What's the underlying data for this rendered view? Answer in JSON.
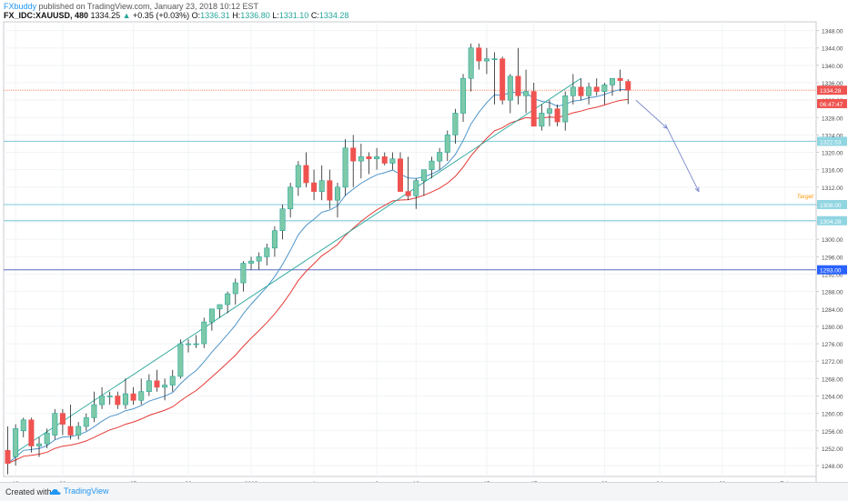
{
  "header": {
    "user": "FXbuddy",
    "published_text": "published on TradingView.com, January 23, 2018 10:12 EST",
    "symbol_tf": "FX_IDC:XAUUSD, 480",
    "last": "1334.25",
    "change_arrow": "▲",
    "change": "+0.35 (+0.03%)",
    "o_label": "O:",
    "o": "1336.31",
    "h_label": "H:",
    "h": "1336.80",
    "l_label": "L:",
    "l": "1331.10",
    "c_label": "C:",
    "c": "1334.28"
  },
  "footer": {
    "created_with": "Created with",
    "brand": "TradingView"
  },
  "chart_data": {
    "type": "candlestick",
    "symbol": "XAUUSD",
    "timeframe": "480",
    "x_ticks": [
      {
        "label": "18",
        "i": 1
      },
      {
        "label": "20",
        "i": 7
      },
      {
        "label": "25",
        "i": 16
      },
      {
        "label": "28",
        "i": 23
      },
      {
        "label": "2018",
        "i": 31
      },
      {
        "label": "4",
        "i": 39
      },
      {
        "label": "8",
        "i": 47
      },
      {
        "label": "10",
        "i": 52
      },
      {
        "label": "15",
        "i": 61
      },
      {
        "label": "17",
        "i": 67
      },
      {
        "label": "22",
        "i": 76
      },
      {
        "label": "24",
        "i": 83
      },
      {
        "label": "29",
        "i": 91
      },
      {
        "label": "Feb",
        "i": 99
      }
    ],
    "y_ticks": [
      1248,
      1252,
      1256,
      1260,
      1264,
      1268,
      1272,
      1276,
      1280,
      1284,
      1288,
      1292,
      1296,
      1300,
      1304,
      1308,
      1312,
      1316,
      1320,
      1324,
      1328,
      1332,
      1336,
      1340,
      1344,
      1348
    ],
    "ylim": [
      1245.5,
      1350
    ],
    "price_labels": [
      {
        "label": "1334.28",
        "price": 1334.28,
        "color": "#ef5350",
        "dashed": true,
        "line_color": "#ff8a65"
      },
      {
        "label": "06:47:47",
        "price": 1331.2,
        "color": "#ef5350",
        "line": false
      },
      {
        "label": "1322.53",
        "price": 1322.53,
        "color": "#90d5e2",
        "line_color": "#7ec8d8"
      },
      {
        "label": "1308.00",
        "price": 1308.0,
        "color": "#90d5e2",
        "line_color": "#7ec8d8"
      },
      {
        "label": "1304.28",
        "price": 1304.28,
        "color": "#90d5e2",
        "line_color": "#7ec8d8"
      },
      {
        "label": "1293.00",
        "price": 1293.0,
        "color": "#2962ff",
        "line_color": "#5c6bc0"
      }
    ],
    "target_label": {
      "text": "Target",
      "price": 1309.5,
      "color": "#ff9800"
    },
    "candles": [
      [
        1251.5,
        1257,
        1246,
        1248.5
      ],
      [
        1250,
        1257.5,
        1248,
        1256.5
      ],
      [
        1256,
        1259,
        1254.5,
        1258.5
      ],
      [
        1258.5,
        1259,
        1251,
        1252.5
      ],
      [
        1252.5,
        1254.5,
        1250,
        1253
      ],
      [
        1253,
        1256.5,
        1252,
        1255.5
      ],
      [
        1255,
        1261,
        1254,
        1260
      ],
      [
        1260,
        1261,
        1255,
        1257.5
      ],
      [
        1257,
        1262,
        1254,
        1255
      ],
      [
        1255,
        1258,
        1254,
        1257
      ],
      [
        1257,
        1260,
        1256,
        1259
      ],
      [
        1259,
        1265,
        1258,
        1262
      ],
      [
        1262,
        1266,
        1261,
        1264
      ],
      [
        1264,
        1265,
        1262,
        1264
      ],
      [
        1264,
        1265,
        1261,
        1262
      ],
      [
        1262,
        1268,
        1261,
        1264.5
      ],
      [
        1264.5,
        1266,
        1262,
        1263
      ],
      [
        1263,
        1268,
        1262,
        1265
      ],
      [
        1265,
        1269,
        1264,
        1267.5
      ],
      [
        1267.5,
        1270,
        1265,
        1266
      ],
      [
        1266,
        1268,
        1263,
        1266.5
      ],
      [
        1266.5,
        1270,
        1265,
        1268.5
      ],
      [
        1268.5,
        1277,
        1268,
        1276
      ],
      [
        1276,
        1277,
        1274,
        1276
      ],
      [
        1276,
        1278,
        1275,
        1276
      ],
      [
        1276,
        1282,
        1275,
        1281
      ],
      [
        1281,
        1284,
        1279,
        1284
      ],
      [
        1284,
        1285,
        1282,
        1285
      ],
      [
        1285,
        1288,
        1283,
        1287.5
      ],
      [
        1287.5,
        1291,
        1285,
        1290
      ],
      [
        1290,
        1295,
        1288,
        1294.5
      ],
      [
        1294.5,
        1296,
        1293,
        1295
      ],
      [
        1295,
        1297,
        1293,
        1296
      ],
      [
        1296,
        1299,
        1294,
        1298
      ],
      [
        1298,
        1303,
        1296,
        1302
      ],
      [
        1302,
        1308,
        1300,
        1307
      ],
      [
        1307,
        1313,
        1305,
        1312
      ],
      [
        1312,
        1318,
        1310,
        1317
      ],
      [
        1317,
        1320,
        1312,
        1313
      ],
      [
        1313,
        1316,
        1309,
        1311
      ],
      [
        1311,
        1317,
        1309,
        1313.5
      ],
      [
        1313.5,
        1316,
        1307,
        1309
      ],
      [
        1309,
        1313,
        1305,
        1312
      ],
      [
        1312,
        1323,
        1310,
        1321
      ],
      [
        1321,
        1324,
        1312,
        1318
      ],
      [
        1318,
        1322,
        1314,
        1319
      ],
      [
        1319,
        1320,
        1315,
        1318.5
      ],
      [
        1318.5,
        1321,
        1316,
        1319
      ],
      [
        1319,
        1320,
        1317,
        1317.5
      ],
      [
        1317.5,
        1320,
        1316,
        1318.5
      ],
      [
        1318.5,
        1320,
        1311,
        1311
      ],
      [
        1311,
        1319,
        1309,
        1310
      ],
      [
        1310,
        1314,
        1307,
        1313.5
      ],
      [
        1313.5,
        1316,
        1310,
        1316
      ],
      [
        1316,
        1319,
        1314,
        1318
      ],
      [
        1318,
        1321,
        1316,
        1320
      ],
      [
        1320,
        1325,
        1318,
        1324
      ],
      [
        1324,
        1330,
        1322,
        1329
      ],
      [
        1329,
        1338,
        1327,
        1337
      ],
      [
        1337,
        1345,
        1334,
        1344
      ],
      [
        1344,
        1345,
        1339,
        1341
      ],
      [
        1341,
        1344,
        1338,
        1341.5
      ],
      [
        1341.5,
        1343,
        1331,
        1341.5
      ],
      [
        1341.5,
        1342,
        1331,
        1332
      ],
      [
        1332,
        1338,
        1329,
        1337.5
      ],
      [
        1337.5,
        1344,
        1331,
        1333
      ],
      [
        1333,
        1339,
        1329,
        1334
      ],
      [
        1334,
        1336,
        1326,
        1326
      ],
      [
        1326,
        1331,
        1325,
        1329
      ],
      [
        1329,
        1332,
        1326,
        1330
      ],
      [
        1330,
        1331,
        1326,
        1327
      ],
      [
        1327,
        1334,
        1325,
        1333
      ],
      [
        1333,
        1338,
        1331,
        1335
      ],
      [
        1335,
        1337,
        1332,
        1333
      ],
      [
        1333,
        1336,
        1331,
        1335
      ],
      [
        1335,
        1337,
        1333,
        1334
      ],
      [
        1334,
        1336,
        1331,
        1335.5
      ],
      [
        1335.5,
        1337,
        1333,
        1337
      ],
      [
        1337,
        1339,
        1334,
        1336.5
      ],
      [
        1336.3,
        1336.8,
        1331.1,
        1334.28
      ]
    ],
    "trendline": {
      "from": {
        "i": 1,
        "price": 1251
      },
      "to": {
        "i": 73,
        "price": 1337
      }
    },
    "projection_arrow": {
      "from": {
        "i": 80,
        "price": 1332
      },
      "mid": {
        "i": 84,
        "price": 1325.5
      },
      "to": {
        "i": 88,
        "price": 1311
      }
    }
  }
}
